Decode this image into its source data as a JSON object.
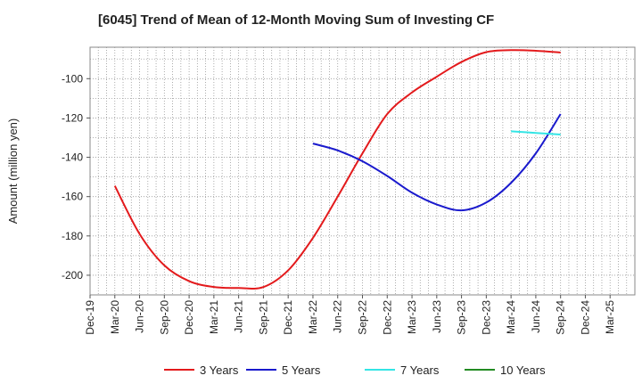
{
  "chart_data": {
    "type": "line",
    "title": "[6045]  Trend of Mean of 12-Month Moving Sum of Investing CF",
    "xlabel": "",
    "ylabel": "Amount (million yen)",
    "ylim": [
      -210,
      -84
    ],
    "y_ticks": [
      -100,
      -120,
      -140,
      -160,
      -180,
      -200
    ],
    "y_tick_labels": [
      "-100",
      "-120",
      "-140",
      "-160",
      "-180",
      "-200"
    ],
    "x_tick_labels": [
      "Dec-19",
      "Mar-20",
      "Jun-20",
      "Sep-20",
      "Dec-20",
      "Mar-21",
      "Jun-21",
      "Sep-21",
      "Dec-21",
      "Mar-22",
      "Jun-22",
      "Sep-22",
      "Dec-22",
      "Mar-23",
      "Jun-23",
      "Sep-23",
      "Dec-23",
      "Mar-24",
      "Jun-24",
      "Sep-24",
      "Dec-24",
      "Mar-25"
    ],
    "grid": true,
    "legend_position": "bottom",
    "series": [
      {
        "name": "3 Years",
        "color": "#e31a1c",
        "x": [
          "Mar-20",
          "Jun-20",
          "Sep-20",
          "Dec-20",
          "Mar-21",
          "Jun-21",
          "Sep-21",
          "Dec-21",
          "Mar-22",
          "Jun-22",
          "Sep-22",
          "Dec-22",
          "Mar-23",
          "Jun-23",
          "Sep-23",
          "Dec-23",
          "Mar-24",
          "Jun-24",
          "Sep-24"
        ],
        "values": [
          -154.5,
          -179,
          -195,
          -203,
          -206,
          -206.5,
          -206,
          -197.5,
          -181,
          -160,
          -138,
          -118,
          -107,
          -99,
          -91.5,
          -86.5,
          -85.5,
          -85.8,
          -86.7
        ]
      },
      {
        "name": "5 Years",
        "color": "#1a1acd",
        "x": [
          "Mar-22",
          "Jun-22",
          "Sep-22",
          "Dec-22",
          "Mar-23",
          "Jun-23",
          "Sep-23",
          "Dec-23",
          "Mar-24",
          "Jun-24",
          "Sep-24"
        ],
        "values": [
          -133,
          -136.5,
          -142,
          -149.5,
          -158,
          -164,
          -167,
          -163,
          -153,
          -138,
          -118
        ]
      },
      {
        "name": "7 Years",
        "color": "#33e5e5",
        "x": [
          "Mar-24",
          "Jun-24",
          "Sep-24"
        ],
        "values": [
          -126.8,
          -127.6,
          -128.4
        ]
      },
      {
        "name": "10 Years",
        "color": "#228b22",
        "x": [],
        "values": []
      }
    ]
  }
}
